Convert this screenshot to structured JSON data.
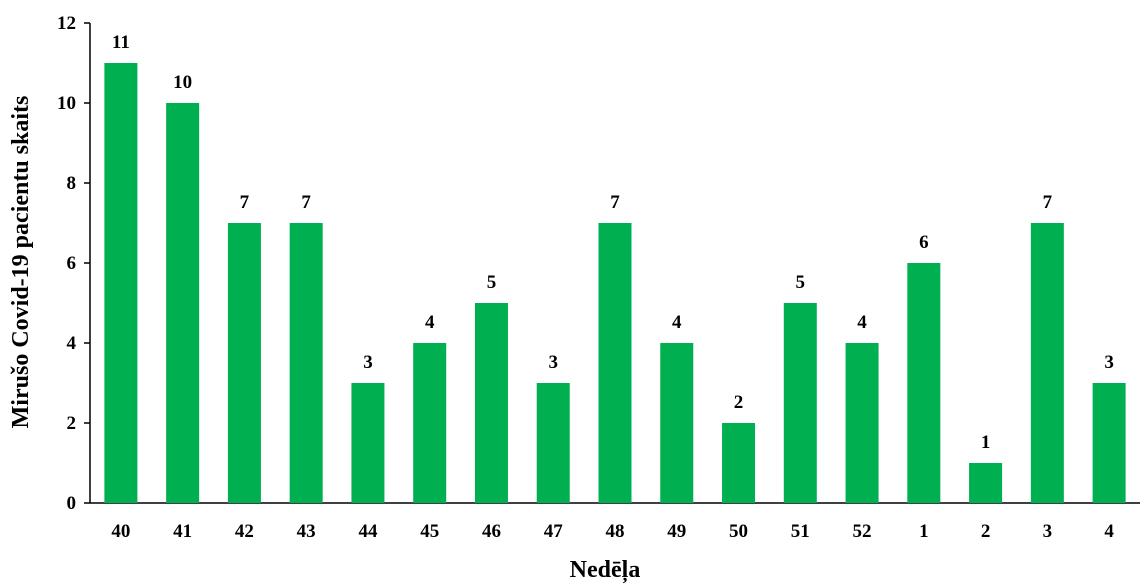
{
  "chart_data": {
    "type": "bar",
    "xlabel": "Nedēļa",
    "ylabel": "Mirušo Covid-19 pacientu skaits",
    "categories": [
      "40",
      "41",
      "42",
      "43",
      "44",
      "45",
      "46",
      "47",
      "48",
      "49",
      "50",
      "51",
      "52",
      "1",
      "2",
      "3",
      "4"
    ],
    "values": [
      11,
      10,
      7,
      7,
      3,
      4,
      5,
      3,
      7,
      4,
      2,
      5,
      4,
      6,
      1,
      7,
      3
    ],
    "ylim": [
      0,
      12
    ],
    "yticks": [
      "0",
      "2",
      "4",
      "6",
      "8",
      "10",
      "12"
    ],
    "grid": false,
    "bar_color": "#00b050",
    "data_labels": true
  }
}
